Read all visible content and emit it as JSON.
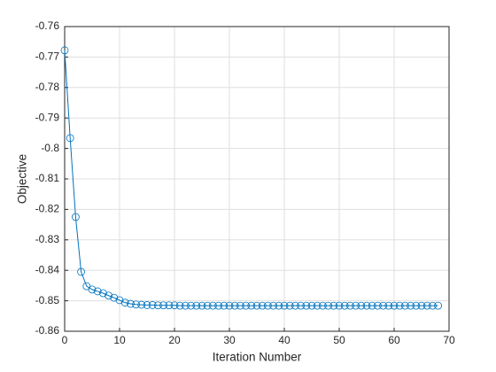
{
  "chart_data": {
    "type": "line",
    "xlabel": "Iteration Number",
    "ylabel": "Objective",
    "x": [
      0,
      1,
      2,
      3,
      4,
      5,
      6,
      7,
      8,
      9,
      10,
      11,
      12,
      13,
      14,
      15,
      16,
      17,
      18,
      19,
      20,
      21,
      22,
      23,
      24,
      25,
      26,
      27,
      28,
      29,
      30,
      31,
      32,
      33,
      34,
      35,
      36,
      37,
      38,
      39,
      40,
      41,
      42,
      43,
      44,
      45,
      46,
      47,
      48,
      49,
      50,
      51,
      52,
      53,
      54,
      55,
      56,
      57,
      58,
      59,
      60,
      61,
      62,
      63,
      64,
      65,
      66,
      67,
      68
    ],
    "series": [
      {
        "color": "#0072bd",
        "marker": "circle",
        "values": [
          -0.7678,
          -0.7966,
          -0.8225,
          -0.8405,
          -0.8452,
          -0.8463,
          -0.8469,
          -0.8475,
          -0.8483,
          -0.849,
          -0.8498,
          -0.8506,
          -0.851,
          -0.8512,
          -0.8513,
          -0.8514,
          -0.8514,
          -0.8515,
          -0.8515,
          -0.8515,
          -0.8515,
          -0.8516,
          -0.8516,
          -0.8516,
          -0.8516,
          -0.8516,
          -0.8516,
          -0.8516,
          -0.8516,
          -0.8516,
          -0.8516,
          -0.8516,
          -0.8516,
          -0.8516,
          -0.8516,
          -0.8516,
          -0.8516,
          -0.8516,
          -0.8516,
          -0.8516,
          -0.8516,
          -0.8516,
          -0.8516,
          -0.8516,
          -0.8516,
          -0.8516,
          -0.8516,
          -0.8516,
          -0.8516,
          -0.8516,
          -0.8516,
          -0.8516,
          -0.8516,
          -0.8516,
          -0.8516,
          -0.8516,
          -0.8516,
          -0.8516,
          -0.8516,
          -0.8516,
          -0.8516,
          -0.8516,
          -0.8516,
          -0.8516,
          -0.8516,
          -0.8516,
          -0.8516,
          -0.8516,
          -0.8516
        ]
      }
    ],
    "xlim": [
      0,
      70
    ],
    "xticks": [
      0,
      10,
      20,
      30,
      40,
      50,
      60,
      70
    ],
    "ylim": [
      -0.86,
      -0.76
    ],
    "yticks": [
      -0.86,
      -0.85,
      -0.84,
      -0.83,
      -0.82,
      -0.81,
      -0.8,
      -0.79,
      -0.78,
      -0.77,
      -0.76
    ],
    "grid": true
  }
}
